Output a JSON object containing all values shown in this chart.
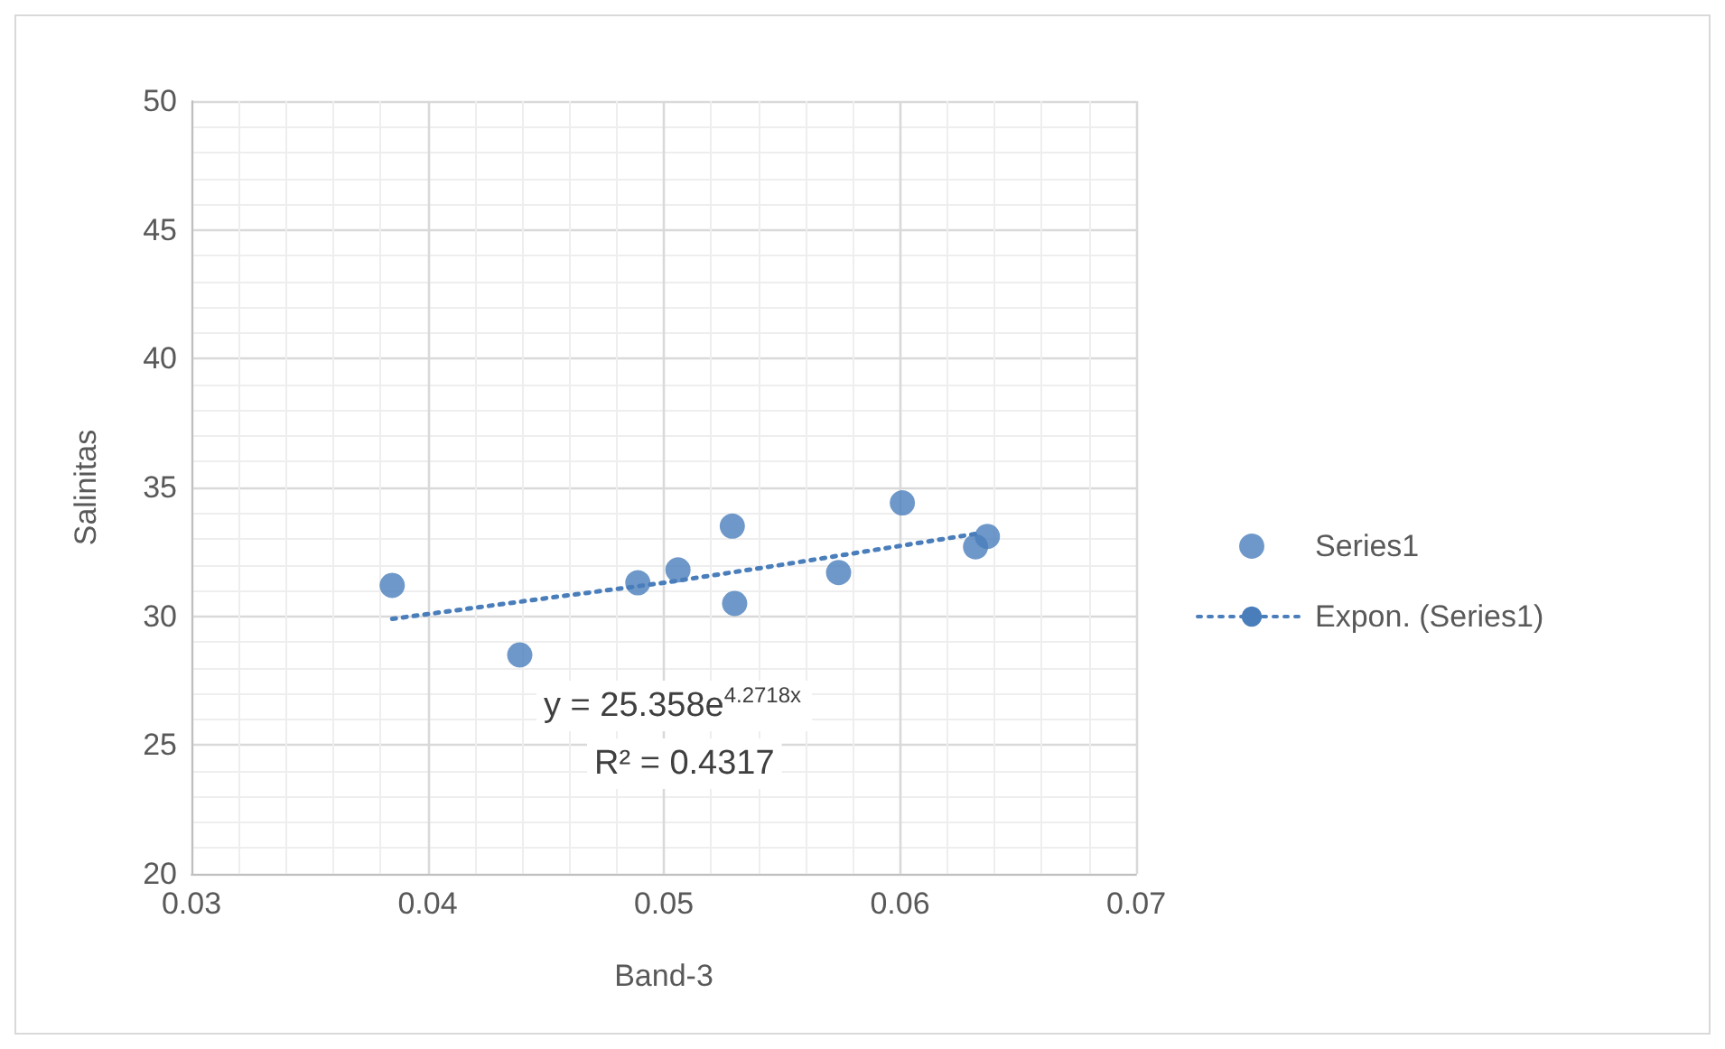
{
  "chart_data": {
    "type": "scatter",
    "xlabel": "Band-3",
    "ylabel": "Salinitas",
    "xlim": [
      0.03,
      0.07
    ],
    "xticks": [
      0.03,
      0.04,
      0.05,
      0.06,
      0.07
    ],
    "ylim": [
      20,
      50
    ],
    "yticks": [
      20,
      25,
      30,
      35,
      40,
      45,
      50
    ],
    "grid": true,
    "legend": "right",
    "marker": "circle",
    "annotations": [
      "y = 25.358e$^{4.2718x}$",
      "R² = 0.4317"
    ],
    "series": [
      {
        "name": "Series1",
        "color": "#4a7ebb",
        "x": [
          0.0385,
          0.0439,
          0.0489,
          0.0506,
          0.0529,
          0.053,
          0.0574,
          0.0601,
          0.0632,
          0.0637
        ],
        "values": [
          31.2,
          28.5,
          31.3,
          31.8,
          33.5,
          30.5,
          31.7,
          34.4,
          32.7,
          33.1
        ]
      },
      {
        "name": "Expon. (Series1)",
        "type": "line",
        "line_style": "dotted",
        "marker": "none",
        "color": "#4a7ebb",
        "x": [
          0.0385,
          0.045,
          0.05,
          0.055,
          0.0632
        ],
        "values": [
          29.9,
          30.7,
          31.3,
          32.0,
          33.2
        ]
      }
    ]
  }
}
